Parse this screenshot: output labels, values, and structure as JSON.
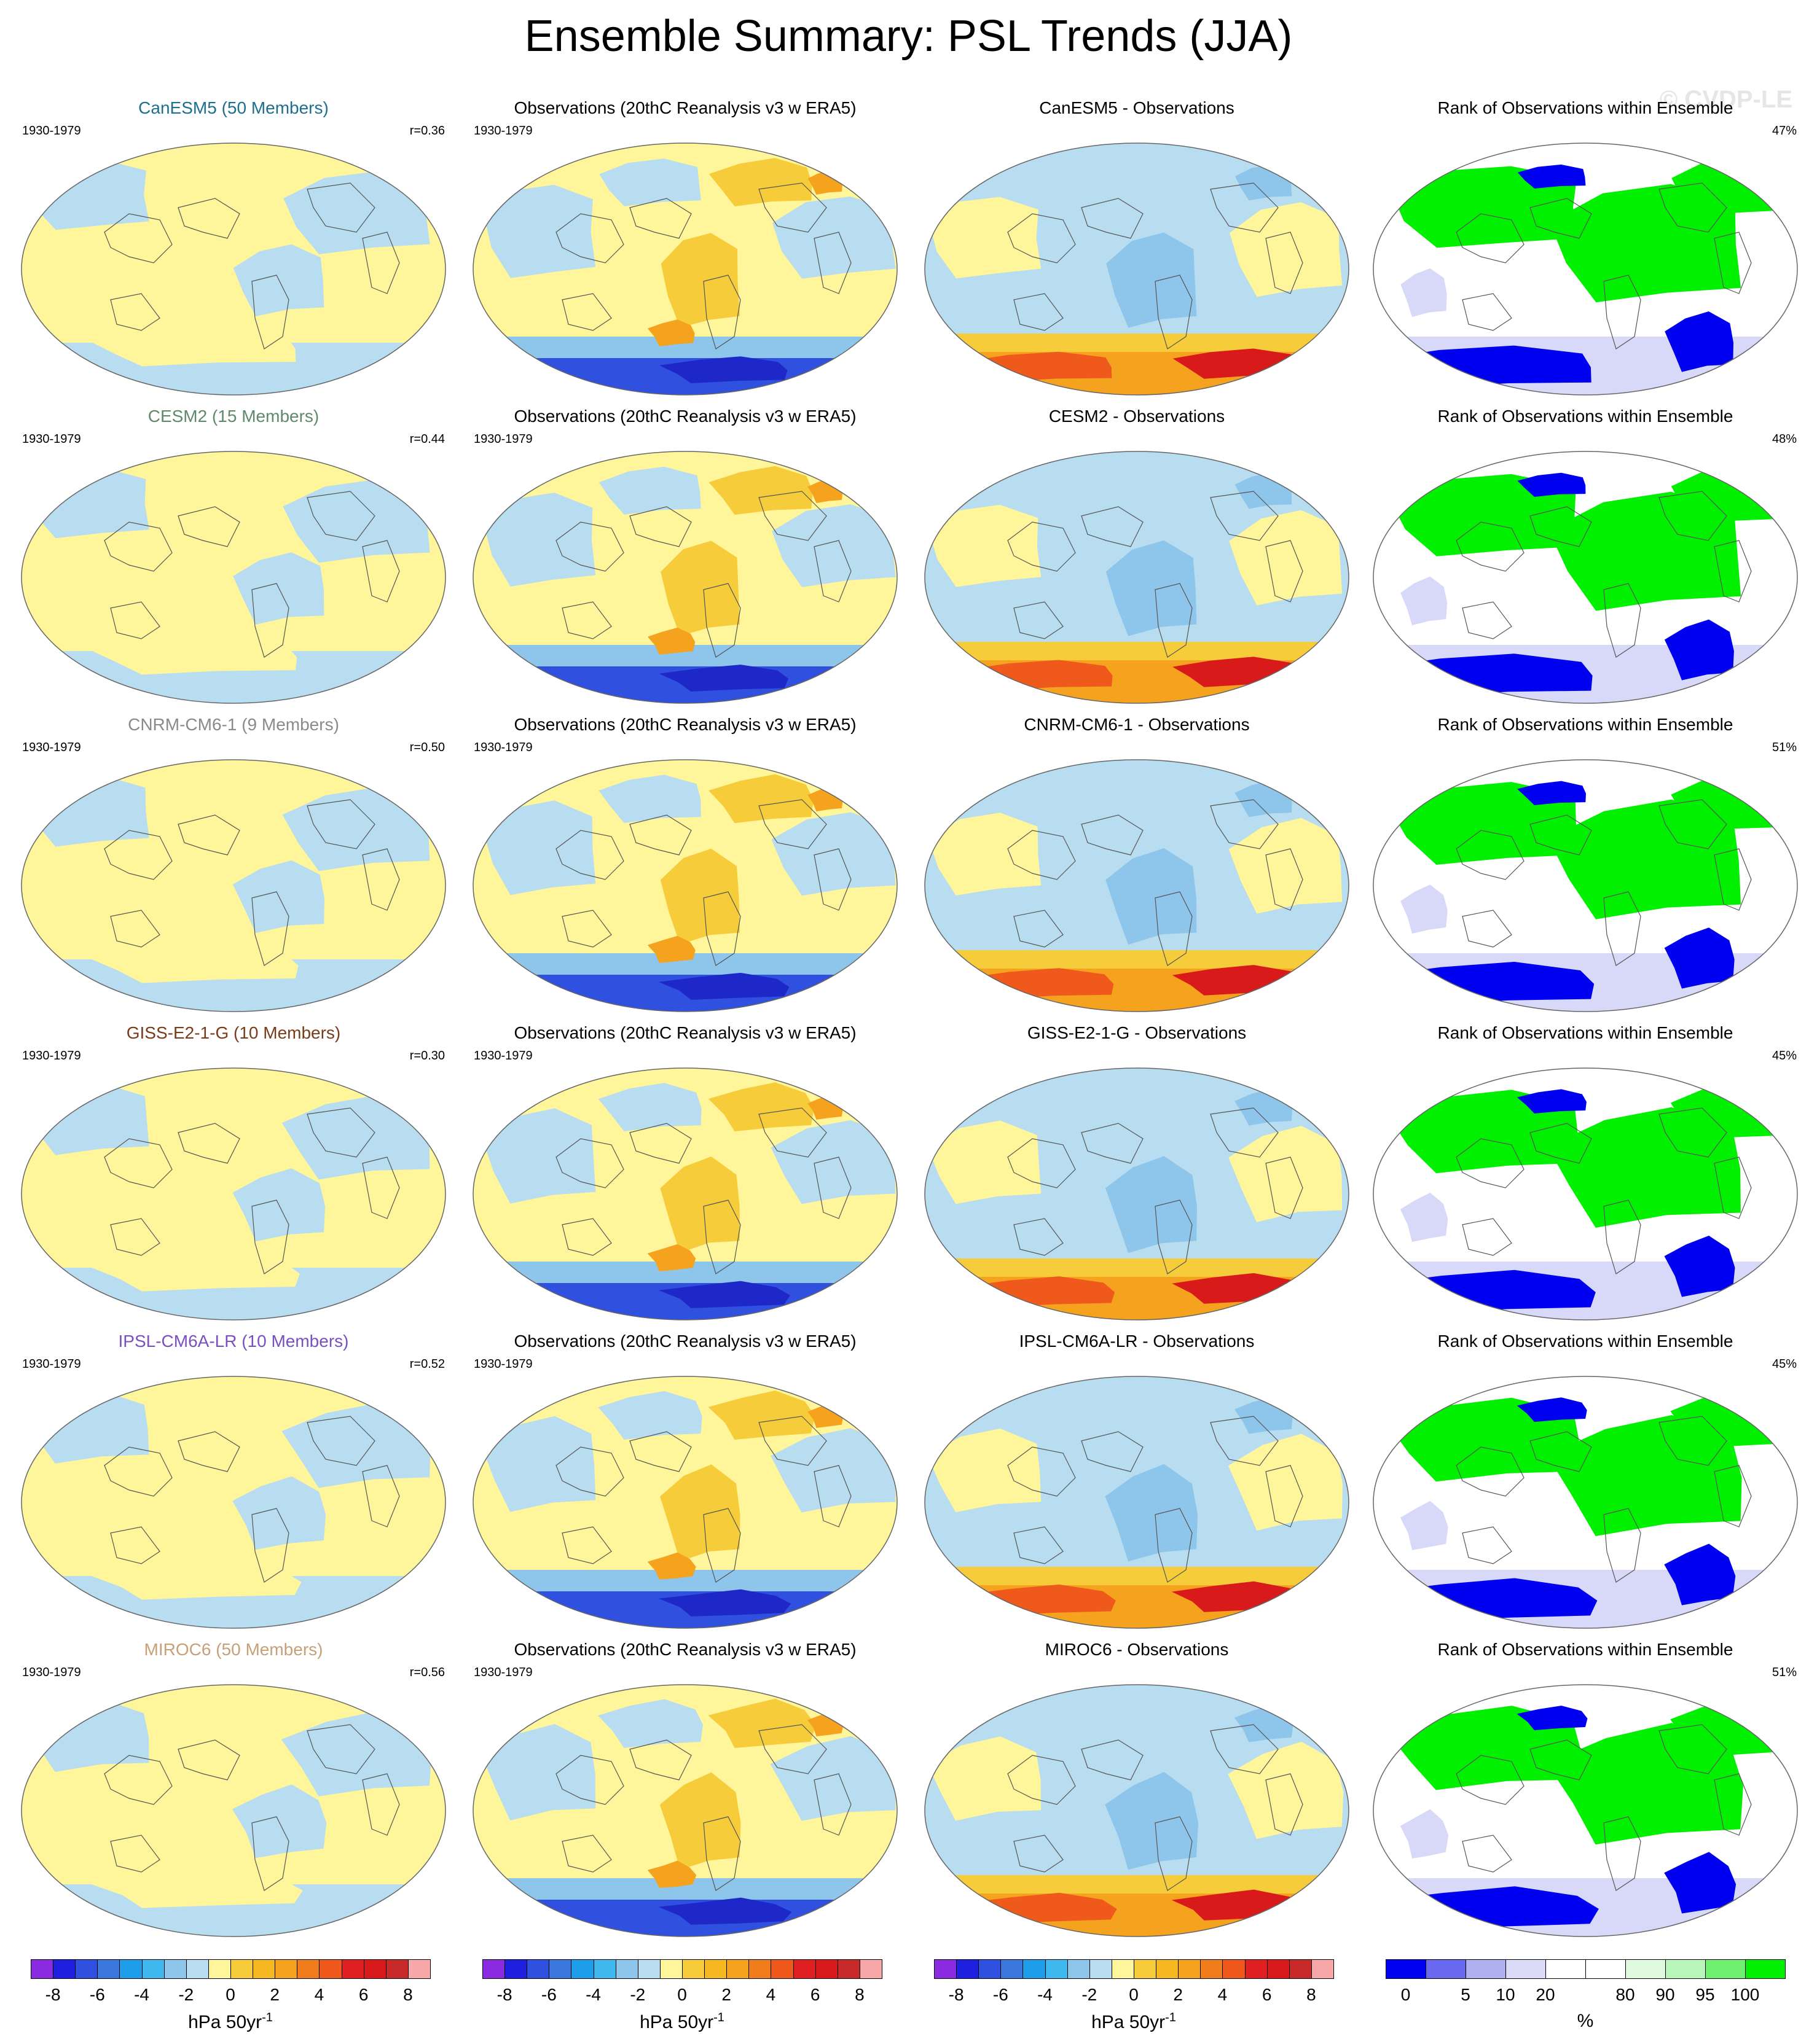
{
  "title": "Ensemble Summary: PSL Trends (JJA)",
  "watermark": "© CVDP-LE",
  "period": "1930-1979",
  "colors": {
    "blue_light": "#b8dcf0",
    "blue_med": "#8ec5ea",
    "blue_dark": "#3050e0",
    "blue_deep": "#1e28c8",
    "yellow": "#fff59a",
    "gold": "#f6cc3a",
    "orange": "#f5a21e",
    "red_orange": "#ef5a1c",
    "red": "#d81a1a",
    "rank_green": "#00f000",
    "rank_blue": "#0000f0",
    "rank_pale": "#d8d8f8"
  },
  "rows": [
    {
      "model": "CanESM5 (50 Members)",
      "model_color": "#1d6f8f",
      "r": "r=0.36",
      "obs_title": "Observations (20thC Reanalysis v3 w ERA5)",
      "diff_title": "CanESM5 - Observations",
      "rank_title": "Rank of Observations within Ensemble",
      "rank_pct": "47%"
    },
    {
      "model": "CESM2 (15 Members)",
      "model_color": "#5f8a6a",
      "r": "r=0.44",
      "obs_title": "Observations (20thC Reanalysis v3 w ERA5)",
      "diff_title": "CESM2 - Observations",
      "rank_title": "Rank of Observations within Ensemble",
      "rank_pct": "48%"
    },
    {
      "model": "CNRM-CM6-1 (9 Members)",
      "model_color": "#8a8a8a",
      "r": "r=0.50",
      "obs_title": "Observations (20thC Reanalysis v3 w ERA5)",
      "diff_title": "CNRM-CM6-1 - Observations",
      "rank_title": "Rank of Observations within Ensemble",
      "rank_pct": "51%"
    },
    {
      "model": "GISS-E2-1-G (10 Members)",
      "model_color": "#7a3b1a",
      "r": "r=0.30",
      "obs_title": "Observations (20thC Reanalysis v3 w ERA5)",
      "diff_title": "GISS-E2-1-G - Observations",
      "rank_title": "Rank of Observations within Ensemble",
      "rank_pct": "45%"
    },
    {
      "model": "IPSL-CM6A-LR (10 Members)",
      "model_color": "#7a4fbf",
      "r": "r=0.52",
      "obs_title": "Observations (20thC Reanalysis v3 w ERA5)",
      "diff_title": "IPSL-CM6A-LR - Observations",
      "rank_title": "Rank of Observations within Ensemble",
      "rank_pct": "45%"
    },
    {
      "model": "MIROC6 (50 Members)",
      "model_color": "#c8a078",
      "r": "r=0.56",
      "obs_title": "Observations (20thC Reanalysis v3 w ERA5)",
      "diff_title": "MIROC6 - Observations",
      "rank_title": "Rank of Observations within Ensemble",
      "rank_pct": "51%"
    }
  ],
  "colorbar_trend": {
    "colors": [
      "#8a2be2",
      "#2020e0",
      "#3050e0",
      "#3a78e0",
      "#1e9ee8",
      "#3fb8ef",
      "#8ec5ea",
      "#b8dcf0",
      "#fff59a",
      "#f6cc3a",
      "#f5b820",
      "#f5a21e",
      "#f07c1c",
      "#ef5a1c",
      "#e02020",
      "#d81a1a",
      "#c82a2a",
      "#f8a8a8"
    ],
    "ticks": [
      "-8",
      "-6",
      "-4",
      "-2",
      "0",
      "2",
      "4",
      "6",
      "8"
    ],
    "label": "hPa 50yr",
    "label_sup": "-1"
  },
  "colorbar_rank": {
    "colors": [
      "#0000f0",
      "#6868f0",
      "#b0b0f0",
      "#dcdcf8",
      "#ffffff",
      "#ffffff",
      "#e0fae0",
      "#b8f5b8",
      "#70f070",
      "#00f000"
    ],
    "ticks": [
      "0",
      "5",
      "10",
      "20",
      "80",
      "90",
      "95",
      "100"
    ],
    "label": "%"
  }
}
